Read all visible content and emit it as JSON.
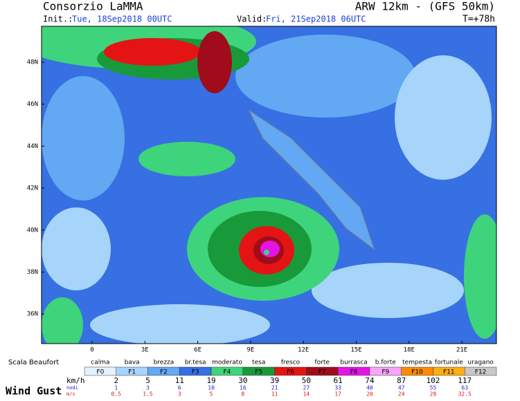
{
  "header": {
    "title": "Consorzio LaMMA",
    "model": "ARW 12km - (GFS 50km)",
    "init_label": "Init.:",
    "init": "Tue, 18Sep2018 00UTC",
    "valid_label": "Valid:",
    "valid": "Fri, 21Sep2018 06UTC",
    "step": "T=+78h"
  },
  "map": {
    "lat_labels": [
      "48N",
      "46N",
      "44N",
      "42N",
      "40N",
      "38N",
      "36N"
    ],
    "lon_labels": [
      "0",
      "3E",
      "6E",
      "9E",
      "12E",
      "15E",
      "18E",
      "21E"
    ]
  },
  "legend": {
    "scale_title": "Scala Beaufort",
    "classes": [
      {
        "name": "calma",
        "force": "F0",
        "color": "#e4f2ff"
      },
      {
        "name": "bava",
        "force": "F1",
        "color": "#a6d4fa"
      },
      {
        "name": "brezza",
        "force": "F2",
        "color": "#62a8f2"
      },
      {
        "name": "br.tesa",
        "force": "F3",
        "color": "#3670e2"
      },
      {
        "name": "moderato",
        "force": "F4",
        "color": "#3ed47c"
      },
      {
        "name": "tesa",
        "force": "F5",
        "color": "#189a3a"
      },
      {
        "name": "fresco",
        "force": "F6",
        "color": "#e41414"
      },
      {
        "name": "forte",
        "force": "F7",
        "color": "#a00c1c"
      },
      {
        "name": "burrasca",
        "force": "F8",
        "color": "#e414e4"
      },
      {
        "name": "b.forte",
        "force": "F9",
        "color": "#f8a4f8"
      },
      {
        "name": "tempesta",
        "force": "F10",
        "color": "#ff8c00"
      },
      {
        "name": "fortunale",
        "force": "F11",
        "color": "#ffae10"
      },
      {
        "name": "uragano",
        "force": "F12",
        "color": "#c8c8c8"
      }
    ],
    "unit_labels": [
      "km/h",
      "nodi",
      "m/s"
    ],
    "kmh": [
      2,
      5,
      11,
      19,
      30,
      39,
      50,
      61,
      74,
      87,
      102,
      117
    ],
    "knots": [
      1,
      3,
      6,
      10,
      16,
      21,
      27,
      33,
      40,
      47,
      55,
      63
    ],
    "ms": [
      "0.5",
      "1.5",
      "3",
      "5",
      "8",
      "11",
      "14",
      "17",
      "20",
      "24",
      "28",
      "32.5"
    ],
    "caption": "Wind Gust"
  }
}
